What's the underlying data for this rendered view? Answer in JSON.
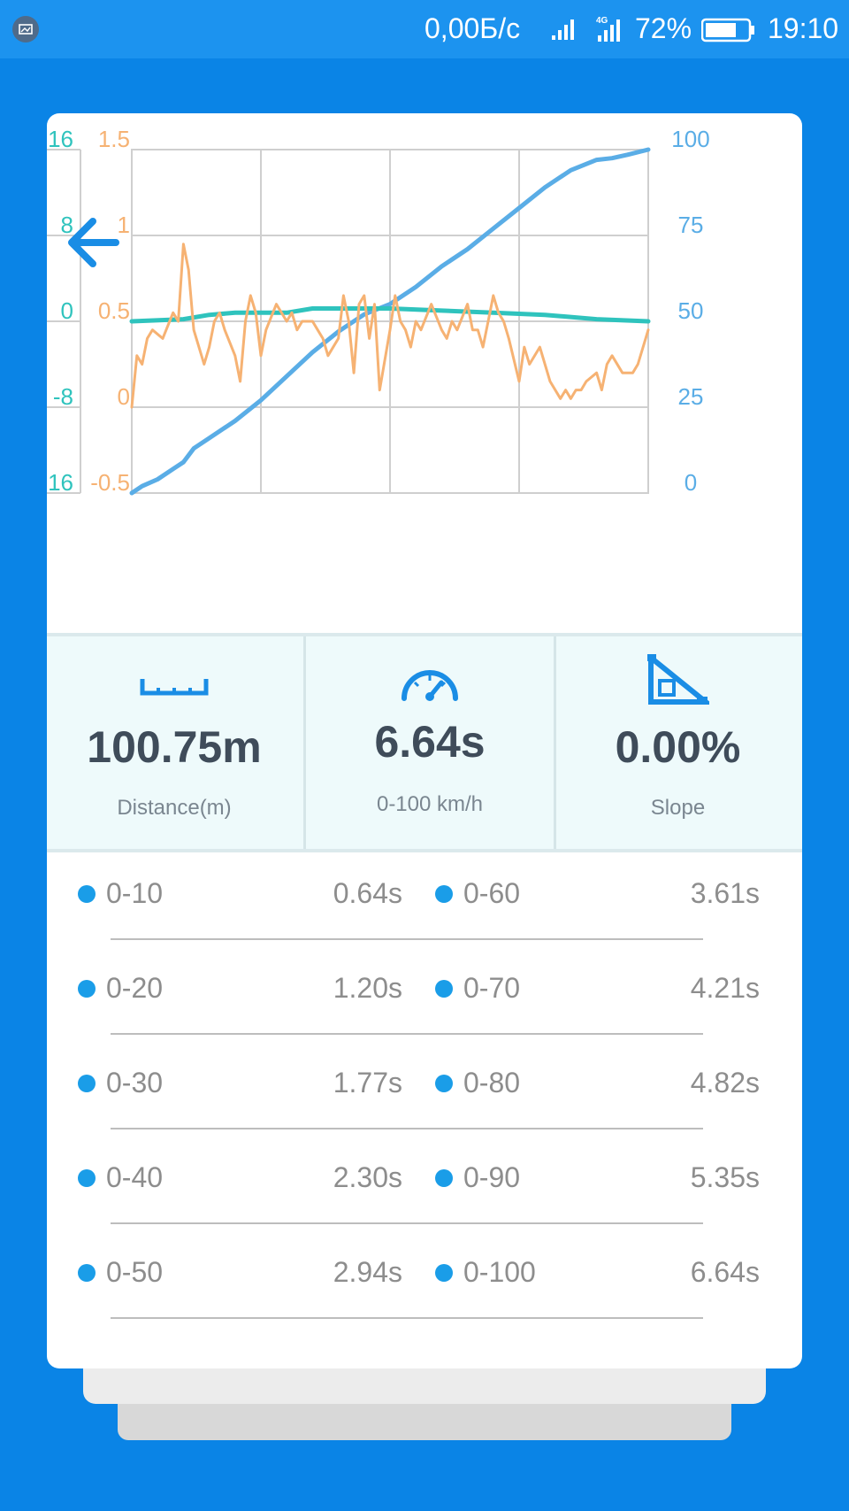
{
  "status_bar": {
    "speed": "0,00Б/с",
    "network": "4G",
    "battery": "72%",
    "time": "19:10"
  },
  "chart_data": {
    "type": "line",
    "grid": true,
    "axes": {
      "left_teal": {
        "ticks": [
          "16",
          "8",
          "0",
          "-8",
          "-16"
        ],
        "range": [
          -16,
          16
        ]
      },
      "left_orange": {
        "ticks": [
          "1.5",
          "1",
          "0.5",
          "0",
          "-0.5"
        ],
        "range": [
          -0.5,
          1.5
        ]
      },
      "right_blue": {
        "ticks": [
          "100",
          "75",
          "50",
          "25",
          "0"
        ],
        "range": [
          0,
          100
        ]
      }
    },
    "colors": {
      "teal": "#2fc3bd",
      "orange": "#f6b273",
      "blue": "#5aade6"
    },
    "series": [
      {
        "axis": "right_blue",
        "color": "#5aade6",
        "x": [
          0,
          0.02,
          0.05,
          0.08,
          0.1,
          0.12,
          0.15,
          0.2,
          0.25,
          0.3,
          0.35,
          0.4,
          0.45,
          0.5,
          0.55,
          0.6,
          0.65,
          0.7,
          0.75,
          0.8,
          0.85,
          0.9,
          0.93,
          0.96,
          1.0
        ],
        "values": [
          0,
          2,
          4,
          7,
          9,
          13,
          16,
          21,
          27,
          34,
          41,
          47,
          52,
          55,
          60,
          66,
          71,
          77,
          83,
          89,
          94,
          97,
          97.5,
          98.5,
          100
        ]
      },
      {
        "axis": "left_teal",
        "color": "#2fc3bd",
        "x": [
          0,
          0.1,
          0.15,
          0.2,
          0.3,
          0.35,
          0.4,
          0.5,
          0.6,
          0.7,
          0.8,
          0.9,
          1.0
        ],
        "values": [
          0,
          0.2,
          0.6,
          0.8,
          0.8,
          1.2,
          1.2,
          1.2,
          1.0,
          0.8,
          0.6,
          0.2,
          0.0
        ]
      },
      {
        "axis": "left_orange",
        "color": "#f6b273",
        "x": [
          0,
          0.01,
          0.02,
          0.03,
          0.04,
          0.06,
          0.08,
          0.09,
          0.1,
          0.11,
          0.12,
          0.14,
          0.15,
          0.16,
          0.17,
          0.18,
          0.2,
          0.21,
          0.22,
          0.23,
          0.24,
          0.25,
          0.26,
          0.28,
          0.3,
          0.31,
          0.32,
          0.33,
          0.35,
          0.36,
          0.37,
          0.38,
          0.4,
          0.41,
          0.42,
          0.43,
          0.44,
          0.45,
          0.46,
          0.47,
          0.48,
          0.5,
          0.51,
          0.52,
          0.53,
          0.54,
          0.55,
          0.56,
          0.58,
          0.6,
          0.61,
          0.62,
          0.63,
          0.65,
          0.66,
          0.67,
          0.68,
          0.69,
          0.7,
          0.71,
          0.72,
          0.73,
          0.75,
          0.76,
          0.77,
          0.79,
          0.81,
          0.83,
          0.84,
          0.85,
          0.86,
          0.87,
          0.88,
          0.9,
          0.91,
          0.92,
          0.93,
          0.95,
          0.97,
          0.98,
          1.0
        ],
        "values": [
          0,
          0.3,
          0.25,
          0.4,
          0.45,
          0.4,
          0.55,
          0.5,
          0.95,
          0.8,
          0.45,
          0.25,
          0.35,
          0.5,
          0.55,
          0.45,
          0.3,
          0.15,
          0.5,
          0.65,
          0.55,
          0.3,
          0.45,
          0.6,
          0.5,
          0.55,
          0.45,
          0.5,
          0.5,
          0.45,
          0.4,
          0.3,
          0.4,
          0.65,
          0.5,
          0.2,
          0.6,
          0.65,
          0.4,
          0.6,
          0.1,
          0.45,
          0.65,
          0.5,
          0.45,
          0.35,
          0.5,
          0.45,
          0.6,
          0.45,
          0.4,
          0.5,
          0.45,
          0.6,
          0.45,
          0.45,
          0.35,
          0.5,
          0.65,
          0.55,
          0.5,
          0.4,
          0.15,
          0.35,
          0.25,
          0.35,
          0.15,
          0.05,
          0.1,
          0.05,
          0.1,
          0.1,
          0.15,
          0.2,
          0.1,
          0.25,
          0.3,
          0.2,
          0.2,
          0.25,
          0.45
        ]
      }
    ]
  },
  "stats": {
    "distance": {
      "value": "100.75m",
      "label": "Distance(m)"
    },
    "acceleration": {
      "value": "6.64s",
      "label": "0-100 km/h"
    },
    "slope": {
      "value": "0.00%",
      "label": "Slope"
    }
  },
  "splits": [
    {
      "left_label": "0-10",
      "left_value": "0.64s",
      "right_label": "0-60",
      "right_value": "3.61s"
    },
    {
      "left_label": "0-20",
      "left_value": "1.20s",
      "right_label": "0-70",
      "right_value": "4.21s"
    },
    {
      "left_label": "0-30",
      "left_value": "1.77s",
      "right_label": "0-80",
      "right_value": "4.82s"
    },
    {
      "left_label": "0-40",
      "left_value": "2.30s",
      "right_label": "0-90",
      "right_value": "5.35s"
    },
    {
      "left_label": "0-50",
      "left_value": "2.94s",
      "right_label": "0-100",
      "right_value": "6.64s"
    }
  ]
}
